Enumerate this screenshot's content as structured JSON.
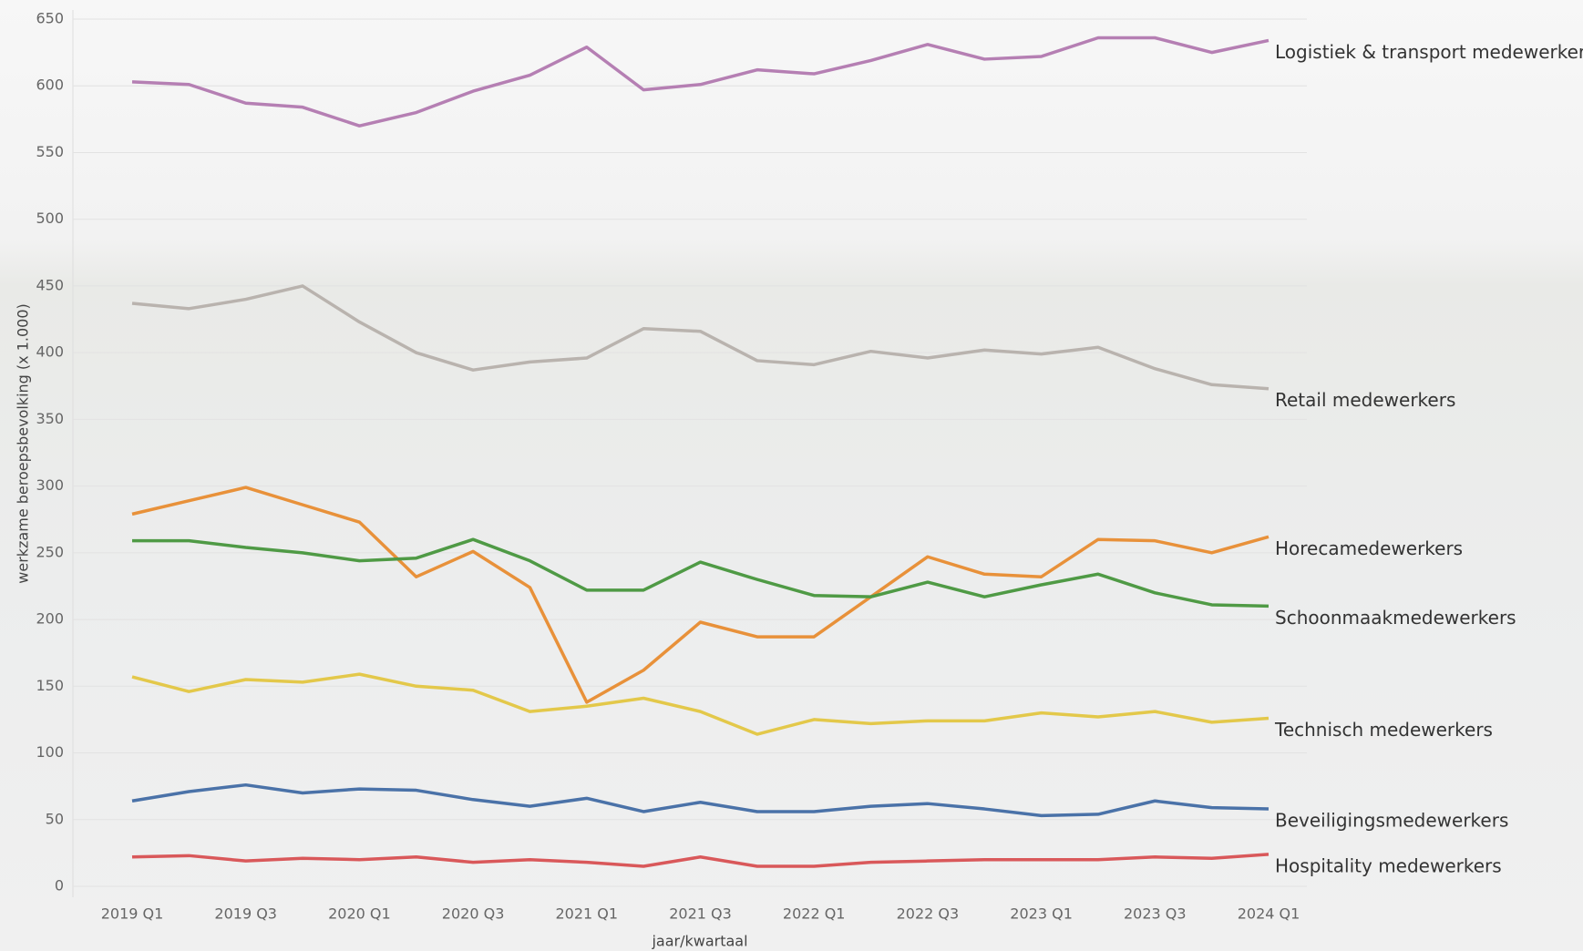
{
  "chart_data": {
    "type": "line",
    "y_label": "werkzame beroepsbevolking (x 1.000)",
    "x_label": "jaar/kwartaal",
    "categories": [
      "2019 Q1",
      null,
      "2019 Q3",
      null,
      "2020 Q1",
      null,
      "2020 Q3",
      null,
      "2021 Q1",
      null,
      "2021 Q3",
      null,
      "2022 Q1",
      null,
      "2022 Q3",
      null,
      "2023 Q1",
      null,
      "2023 Q3",
      null,
      "2024 Q1"
    ],
    "ylim": [
      0,
      650
    ],
    "yticks": [
      0,
      50,
      100,
      150,
      200,
      250,
      300,
      350,
      400,
      450,
      500,
      550,
      600,
      650
    ],
    "grid": true,
    "series": [
      {
        "name": "Logistiek & transport medewerkers",
        "color": "#b57fb3",
        "values": [
          603,
          601,
          587,
          584,
          570,
          580,
          596,
          608,
          629,
          597,
          601,
          612,
          609,
          619,
          631,
          620,
          622,
          636,
          636,
          625,
          634
        ]
      },
      {
        "name": "Retail medewerkers",
        "color": "#b9b3ae",
        "values": [
          437,
          433,
          440,
          450,
          423,
          400,
          387,
          393,
          396,
          418,
          416,
          394,
          391,
          401,
          396,
          402,
          399,
          404,
          388,
          376,
          373
        ]
      },
      {
        "name": "Horecamedewerkers",
        "color": "#e8913a",
        "values": [
          279,
          289,
          299,
          286,
          273,
          232,
          251,
          224,
          138,
          162,
          198,
          187,
          187,
          217,
          247,
          234,
          232,
          260,
          259,
          250,
          262
        ]
      },
      {
        "name": "Schoonmaakmedewerkers",
        "color": "#4f9a45",
        "values": [
          259,
          259,
          254,
          250,
          244,
          246,
          260,
          244,
          222,
          222,
          243,
          230,
          218,
          217,
          228,
          217,
          226,
          234,
          220,
          211,
          210
        ]
      },
      {
        "name": "Technisch medewerkers",
        "color": "#e3c84a",
        "values": [
          157,
          146,
          155,
          153,
          159,
          150,
          147,
          131,
          135,
          141,
          131,
          114,
          125,
          122,
          124,
          124,
          130,
          127,
          131,
          123,
          126
        ]
      },
      {
        "name": "Beveiligingsmedewerkers",
        "color": "#4a72a8",
        "values": [
          64,
          71,
          76,
          70,
          73,
          72,
          65,
          60,
          66,
          56,
          63,
          56,
          56,
          60,
          62,
          58,
          53,
          54,
          64,
          59,
          58
        ]
      },
      {
        "name": "Hospitality medewerkers",
        "color": "#d9585a",
        "values": [
          22,
          23,
          19,
          21,
          20,
          22,
          18,
          20,
          18,
          15,
          22,
          15,
          15,
          18,
          19,
          20,
          20,
          20,
          22,
          21,
          24
        ]
      }
    ]
  }
}
